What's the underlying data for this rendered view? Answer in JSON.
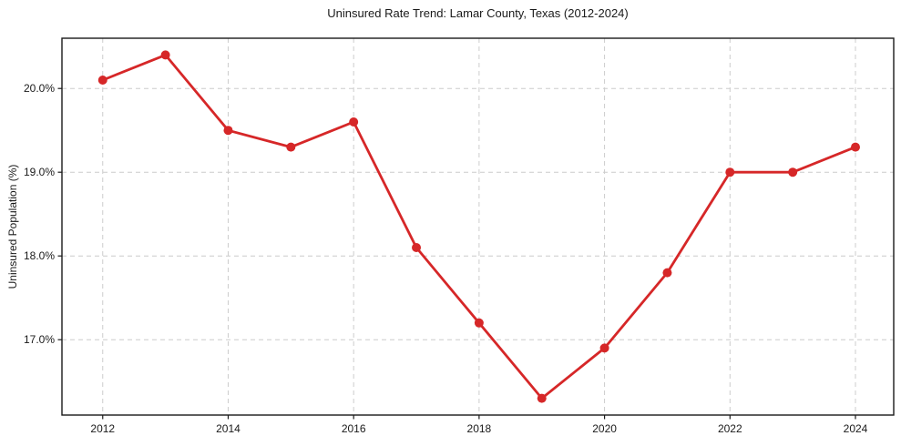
{
  "chart_data": {
    "type": "line",
    "title": "Uninsured Rate Trend: Lamar County, Texas (2012-2024)",
    "xlabel": "",
    "ylabel": "Uninsured Population (%)",
    "x": [
      2012,
      2013,
      2014,
      2015,
      2016,
      2017,
      2018,
      2019,
      2020,
      2021,
      2022,
      2023,
      2024
    ],
    "values": [
      20.1,
      20.4,
      19.5,
      19.3,
      19.6,
      18.1,
      17.2,
      16.3,
      16.9,
      17.8,
      19.0,
      19.0,
      19.3
    ],
    "xticks": [
      2012,
      2014,
      2016,
      2018,
      2020,
      2022,
      2024
    ],
    "xtick_labels": [
      "2012",
      "2014",
      "2016",
      "2018",
      "2020",
      "2022",
      "2024"
    ],
    "yticks": [
      17.0,
      18.0,
      19.0,
      20.0
    ],
    "ytick_labels": [
      "17.0%",
      "18.0%",
      "19.0%",
      "20.0%"
    ],
    "xlim": [
      2011.35,
      2024.61
    ],
    "ylim": [
      16.1,
      20.6
    ],
    "grid": true,
    "legend": false,
    "line_color": "#d62728",
    "marker": "circle",
    "marker_color": "#d62728",
    "grid_color": "#cccccc"
  }
}
